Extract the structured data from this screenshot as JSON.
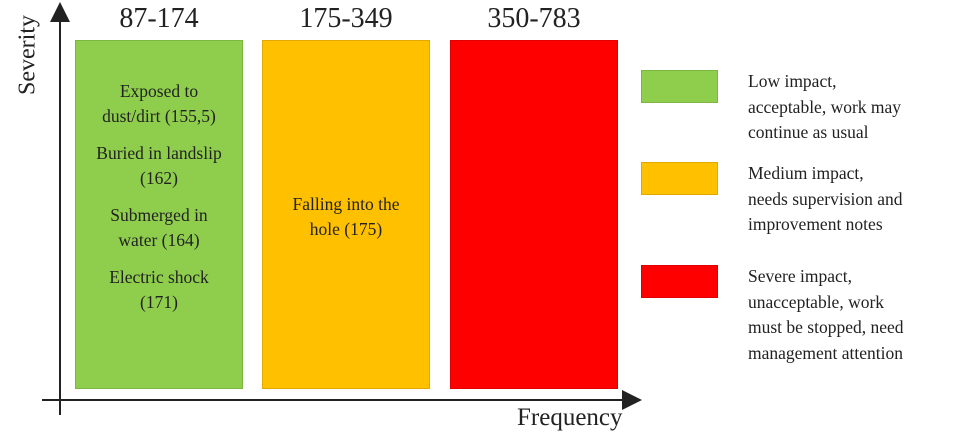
{
  "axes": {
    "y_label": "Severity",
    "x_label": "Frequency"
  },
  "colors": {
    "low": "#8fce4d",
    "medium": "#ffc000",
    "severe": "#ff0000",
    "axis": "#222222"
  },
  "zones": [
    {
      "range": "87-174",
      "color_key": "low",
      "items": [
        "Exposed to\ndust/dirt (155,5)",
        "Buried in landslip\n(162)",
        "Submerged in\nwater (164)",
        "Electric shock\n(171)"
      ]
    },
    {
      "range": "175-349",
      "color_key": "medium",
      "items": [
        "Falling into the\nhole (175)"
      ]
    },
    {
      "range": "350-783",
      "color_key": "severe",
      "items": []
    }
  ],
  "legend": [
    {
      "color_key": "low",
      "text": "Low impact,\nacceptable, work may\ncontinue as usual"
    },
    {
      "color_key": "medium",
      "text": "Medium impact,\nneeds supervision and\nimprovement notes"
    },
    {
      "color_key": "severe",
      "text": "Severe impact,\nunacceptable, work\nmust be stopped, need\nmanagement attention"
    }
  ]
}
